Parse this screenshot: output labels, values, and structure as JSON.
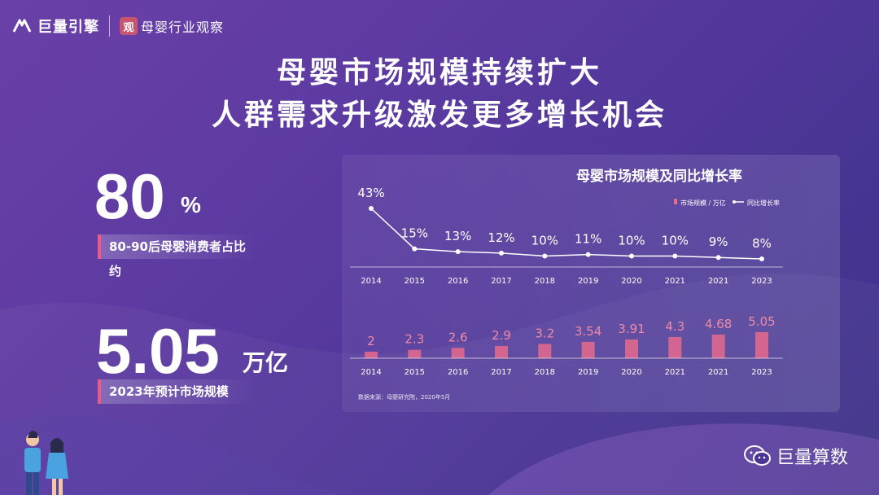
{
  "header": {
    "logo1_main": "巨量引擎",
    "logo2_seal": "观",
    "logo2_main": "母婴行业观察"
  },
  "headline": {
    "line1": "母婴市场规模持续扩大",
    "line2": "人群需求升级激发更多增长机会"
  },
  "stats": [
    {
      "value": "80",
      "unit": "%",
      "label": "80-90后母婴消费者占比约"
    },
    {
      "value": "5.05",
      "unit": "万亿",
      "label": "2023年预计市场规模"
    }
  ],
  "chart_data": {
    "type": "bar+line",
    "title": "母婴市场规模及同比增长率",
    "legend": {
      "bar": "市场规模 / 万亿",
      "line": "同比增长率",
      "placement": "top-right"
    },
    "categories": [
      "2014",
      "2015",
      "2016",
      "2017",
      "2018",
      "2019",
      "2020",
      "2021",
      "2021",
      "2023"
    ],
    "line_series": {
      "name": "同比增长率",
      "values": [
        43,
        15,
        13,
        12,
        10,
        11,
        10,
        10,
        9,
        8
      ],
      "labels": [
        "43%",
        "15%",
        "13%",
        "12%",
        "10%",
        "11%",
        "10%",
        "10%",
        "9%",
        "8%"
      ]
    },
    "bar_series": {
      "name": "市场规模 / 万亿",
      "values": [
        2,
        2.3,
        2.6,
        2.9,
        3.2,
        3.54,
        3.91,
        4.3,
        4.68,
        5.05
      ],
      "labels": [
        "2",
        "2.3",
        "2.6",
        "2.9",
        "3.2",
        "3.54",
        "3.91",
        "4.3",
        "4.68",
        "5.05"
      ]
    },
    "source": "数据来源：母婴研究院，2020年5月",
    "colors": {
      "bar": "#e86a8e",
      "line": "#ffffff",
      "bar_label": "#f08aa8"
    }
  },
  "footer": {
    "brand": "巨量算数"
  }
}
